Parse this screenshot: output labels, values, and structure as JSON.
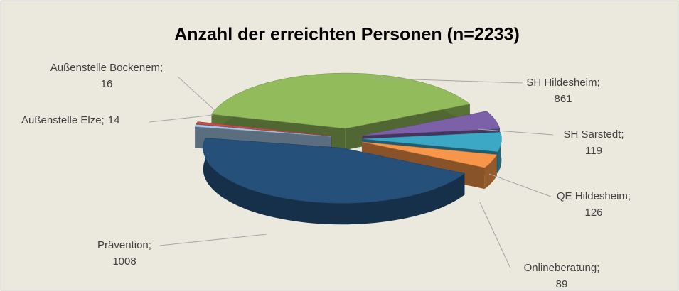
{
  "chart_data": {
    "type": "pie",
    "title": "Anzahl der erreichten Personen (n=2233)",
    "categories": [
      "SH Hildesheim;",
      "SH Sarstedt;",
      "QE Hildesheim;",
      "Onlineberatung;",
      "Prävention;",
      "Außenstelle Elze;",
      "Außenstelle Bockenem;"
    ],
    "values": [
      861,
      119,
      126,
      89,
      1008,
      14,
      16
    ],
    "colors": [
      "#92bc5c",
      "#7c60a8",
      "#3ca8c6",
      "#f7964a",
      "#24507a",
      "#a6c8e8",
      "#c0504d"
    ]
  }
}
